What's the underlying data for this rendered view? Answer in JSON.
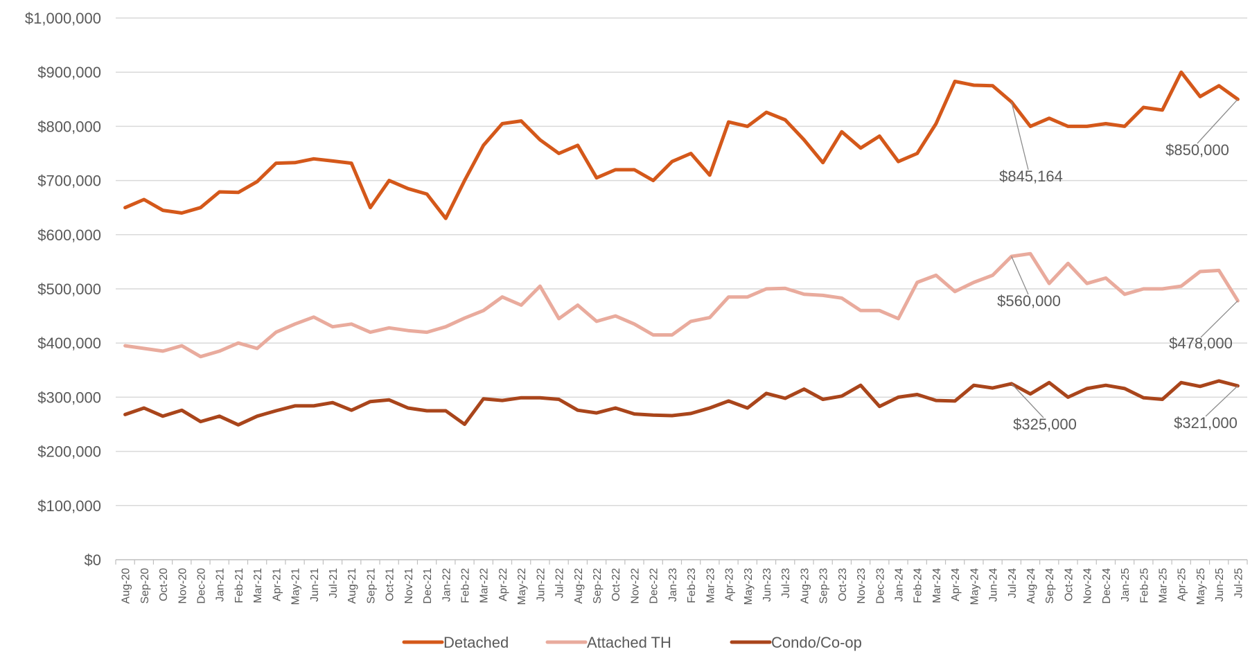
{
  "chart_data": {
    "type": "line",
    "categories": [
      "Aug-20",
      "Sep-20",
      "Oct-20",
      "Nov-20",
      "Dec-20",
      "Jan-21",
      "Feb-21",
      "Mar-21",
      "Apr-21",
      "May-21",
      "Jun-21",
      "Jul-21",
      "Aug-21",
      "Sep-21",
      "Oct-21",
      "Nov-21",
      "Dec-21",
      "Jan-22",
      "Feb-22",
      "Mar-22",
      "Apr-22",
      "May-22",
      "Jun-22",
      "Jul-22",
      "Aug-22",
      "Sep-22",
      "Oct-22",
      "Nov-22",
      "Dec-22",
      "Jan-23",
      "Feb-23",
      "Mar-23",
      "Apr-23",
      "May-23",
      "Jun-23",
      "Jul-23",
      "Aug-23",
      "Sep-23",
      "Oct-23",
      "Nov-23",
      "Dec-23",
      "Jan-24",
      "Feb-24",
      "Mar-24",
      "Apr-24",
      "May-24",
      "Jun-24",
      "Jul-24",
      "Aug-24",
      "Sep-24",
      "Oct-24",
      "Nov-24",
      "Dec-24",
      "Jan-25",
      "Feb-25",
      "Mar-25",
      "Apr-25",
      "May-25",
      "Jun-25",
      "Jul-25"
    ],
    "series": [
      {
        "name": "Detached",
        "color": "#D4581A",
        "values": [
          650000,
          665000,
          645000,
          640000,
          650000,
          679000,
          678000,
          698000,
          732000,
          733000,
          740000,
          736000,
          732000,
          650000,
          700000,
          685000,
          675000,
          630000,
          700000,
          765000,
          805000,
          810000,
          775000,
          750000,
          765000,
          705000,
          720000,
          720000,
          700000,
          735000,
          750000,
          710000,
          808000,
          800000,
          826000,
          812000,
          775000,
          733000,
          790000,
          760000,
          782000,
          735000,
          750000,
          805000,
          883000,
          876000,
          875000,
          845164,
          800000,
          815000,
          800000,
          800000,
          805000,
          800000,
          835000,
          830000,
          900000,
          855000,
          875000,
          850000
        ]
      },
      {
        "name": "Attached TH",
        "color": "#E9AB9D",
        "values": [
          395000,
          390000,
          385000,
          395000,
          375000,
          385000,
          400000,
          390000,
          420000,
          435000,
          448000,
          430000,
          435000,
          420000,
          428000,
          423000,
          420000,
          430000,
          446000,
          460000,
          485000,
          470000,
          505000,
          445000,
          470000,
          440000,
          450000,
          435000,
          415000,
          415000,
          440000,
          447000,
          485000,
          485000,
          500000,
          501000,
          490000,
          488000,
          483000,
          460000,
          460000,
          445000,
          512000,
          525000,
          495000,
          512000,
          525000,
          560000,
          565000,
          510000,
          547000,
          510000,
          520000,
          490000,
          500000,
          500000,
          505000,
          532000,
          534000,
          478000
        ]
      },
      {
        "name": "Condo/Co-op",
        "color": "#A9451B",
        "values": [
          268000,
          280000,
          265000,
          276000,
          255000,
          265000,
          249000,
          265000,
          275000,
          284000,
          284000,
          290000,
          276000,
          292000,
          295000,
          280000,
          275000,
          275000,
          250000,
          297000,
          294000,
          299000,
          299000,
          296000,
          276000,
          271000,
          280000,
          269000,
          267000,
          266000,
          270000,
          280000,
          293000,
          280000,
          307000,
          298000,
          315000,
          296000,
          302000,
          322000,
          283000,
          300000,
          305000,
          294000,
          293000,
          322000,
          317000,
          325000,
          306000,
          327000,
          300000,
          316000,
          322000,
          316000,
          299000,
          296000,
          327000,
          320000,
          330000,
          321000
        ]
      }
    ],
    "ylim": [
      0,
      1000000
    ],
    "yticks": [
      0,
      100000,
      200000,
      300000,
      400000,
      500000,
      600000,
      700000,
      800000,
      900000,
      1000000
    ],
    "ytick_labels": [
      "$0",
      "$100,000",
      "$200,000",
      "$300,000",
      "$400,000",
      "$500,000",
      "$600,000",
      "$700,000",
      "$800,000",
      "$900,000",
      "$1,000,000"
    ],
    "annotations": [
      {
        "text": "$845,164",
        "series": 0,
        "index": 47
      },
      {
        "text": "$850,000",
        "series": 0,
        "index": 59
      },
      {
        "text": "$560,000",
        "series": 1,
        "index": 47
      },
      {
        "text": "$478,000",
        "series": 1,
        "index": 59
      },
      {
        "text": "$325,000",
        "series": 2,
        "index": 47
      },
      {
        "text": "$321,000",
        "series": 2,
        "index": 59
      }
    ],
    "legend_position": "bottom",
    "grid": true
  }
}
